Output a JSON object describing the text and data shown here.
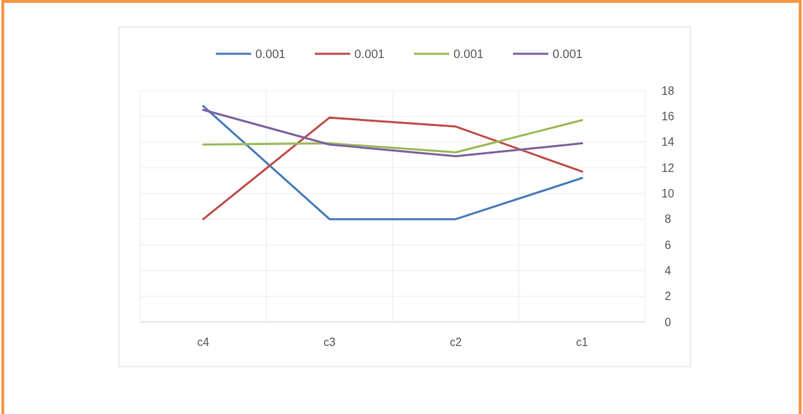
{
  "chart_data": {
    "type": "line",
    "categories": [
      "c4",
      "c3",
      "c2",
      "c1"
    ],
    "series": [
      {
        "name": "0.001",
        "color": "#4a7ebb",
        "values": [
          16.8,
          8.0,
          8.0,
          11.2
        ]
      },
      {
        "name": "0.001",
        "color": "#c0504d",
        "values": [
          8.0,
          15.9,
          15.2,
          11.7
        ]
      },
      {
        "name": "0.001",
        "color": "#9bbb59",
        "values": [
          13.8,
          13.9,
          13.2,
          15.7
        ]
      },
      {
        "name": "0.001",
        "color": "#8064a2",
        "values": [
          16.5,
          13.8,
          12.9,
          13.9
        ]
      }
    ],
    "ylim": [
      0,
      18
    ],
    "yticks": [
      0,
      2,
      4,
      6,
      8,
      10,
      12,
      14,
      16,
      18
    ],
    "grid": true,
    "legend": "top",
    "marker": "none",
    "line_style": "solid"
  }
}
